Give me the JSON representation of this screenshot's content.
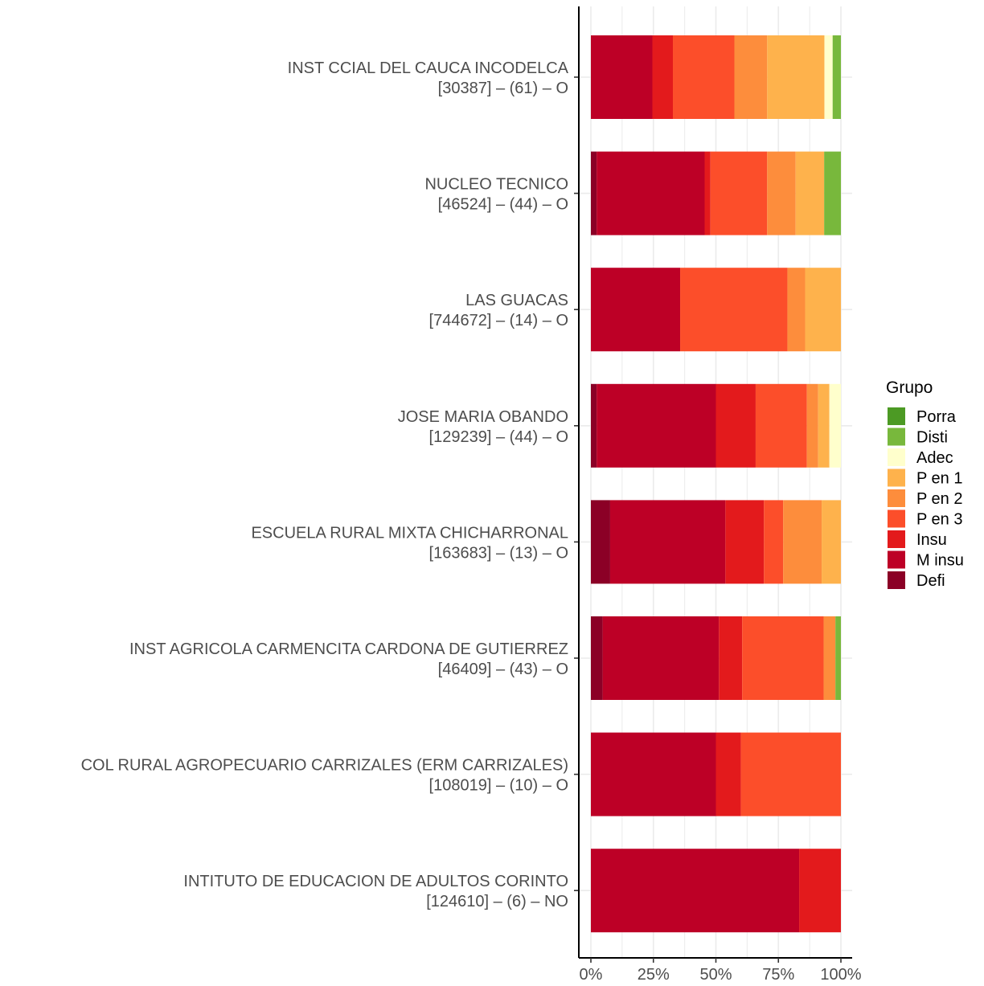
{
  "chart_data": {
    "type": "bar",
    "orientation": "horizontal",
    "stacked": "percent",
    "categories": [
      {
        "name": "INST CCIAL DEL CAUCA INCODELCA ",
        "detail": "[30387] – (61) – O"
      },
      {
        "name": "NUCLEO TECNICO ",
        "detail": "[46524] – (44) – O"
      },
      {
        "name": "LAS GUACAS ",
        "detail": "[744672] – (14) – O"
      },
      {
        "name": "JOSE MARIA OBANDO ",
        "detail": "[129239] – (44) – O"
      },
      {
        "name": "ESCUELA RURAL MIXTA CHICHARRONAL ",
        "detail": "[163683] – (13) – O"
      },
      {
        "name": "INST AGRICOLA CARMENCITA CARDONA DE GUTIERREZ ",
        "detail": "[46409] – (43) – O"
      },
      {
        "name": "COL RURAL AGROPECUARIO CARRIZALES (ERM CARRIZALES) ",
        "detail": "[108019] – (10) – O"
      },
      {
        "name": "INTITUTO DE EDUCACION DE ADULTOS CORINTO ",
        "detail": "[124610] – (6) – NO"
      }
    ],
    "series": [
      {
        "name": "Defi",
        "color": "#8B0026",
        "values": [
          0,
          2.3,
          0,
          2.3,
          7.7,
          4.7,
          0,
          0
        ]
      },
      {
        "name": "M insu",
        "color": "#BD0026",
        "values": [
          24.6,
          43.2,
          35.7,
          47.7,
          46.1,
          46.5,
          50,
          83.3
        ]
      },
      {
        "name": "Insu",
        "color": "#E31A1C",
        "values": [
          8.2,
          2.3,
          0,
          15.9,
          15.4,
          9.3,
          10,
          16.7
        ]
      },
      {
        "name": "P en 3",
        "color": "#FC4E2A",
        "values": [
          24.6,
          22.7,
          42.9,
          20.5,
          7.7,
          32.6,
          40,
          0
        ]
      },
      {
        "name": "P en 2",
        "color": "#FD8D3C",
        "values": [
          13.1,
          11.4,
          7.1,
          4.5,
          15.4,
          4.7,
          0,
          0
        ]
      },
      {
        "name": "P en 1",
        "color": "#FEB24C",
        "values": [
          22.9,
          11.4,
          14.3,
          4.5,
          7.7,
          0,
          0,
          0
        ]
      },
      {
        "name": "Adec",
        "color": "#FFFFCC",
        "values": [
          3.3,
          0,
          0,
          4.6,
          0,
          0,
          0,
          0
        ]
      },
      {
        "name": "Disti",
        "color": "#78B83C",
        "values": [
          3.3,
          6.7,
          0,
          0,
          0,
          2.2,
          0,
          0
        ]
      },
      {
        "name": "Porra",
        "color": "#4C9A24",
        "values": [
          0,
          0,
          0,
          0,
          0,
          0,
          0,
          0
        ]
      }
    ],
    "x_ticks": [
      "0%",
      "25%",
      "50%",
      "75%",
      "100%"
    ],
    "xlim": [
      0,
      100
    ],
    "legend": {
      "title": "Grupo",
      "placement": "right",
      "order": [
        "Porra",
        "Disti",
        "Adec",
        "P en 1",
        "P en 2",
        "P en 3",
        "Insu",
        "M insu",
        "Defi"
      ]
    },
    "grid": true
  }
}
